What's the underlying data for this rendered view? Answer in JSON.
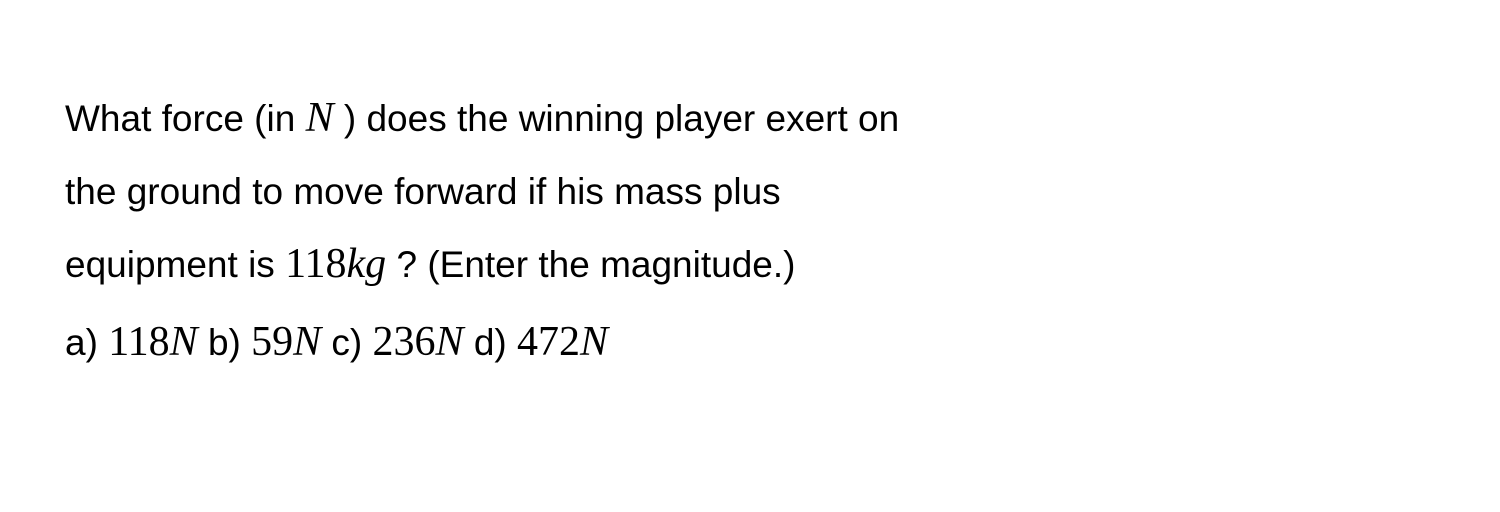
{
  "question": {
    "line1_pre": "What force (in ",
    "line1_var": "N",
    "line1_post": " ) does the winning player exert on",
    "line2": "the ground to move forward if his mass plus",
    "line3_pre": "equipment is ",
    "line3_value": "118",
    "line3_unit": "kg",
    "line3_post": " ? (Enter the magnitude.)"
  },
  "options": {
    "a": {
      "label": "a) ",
      "value": "118",
      "unit": "N"
    },
    "b": {
      "label": "  b) ",
      "value": "59",
      "unit": "N"
    },
    "c": {
      "label": "  c) ",
      "value": "236",
      "unit": "N"
    },
    "d": {
      "label": "  d) ",
      "value": "472",
      "unit": "N"
    }
  },
  "style": {
    "background_color": "#ffffff",
    "text_color": "#000000",
    "body_fontsize": 37,
    "math_fontsize": 42,
    "line_height": 1.85
  }
}
